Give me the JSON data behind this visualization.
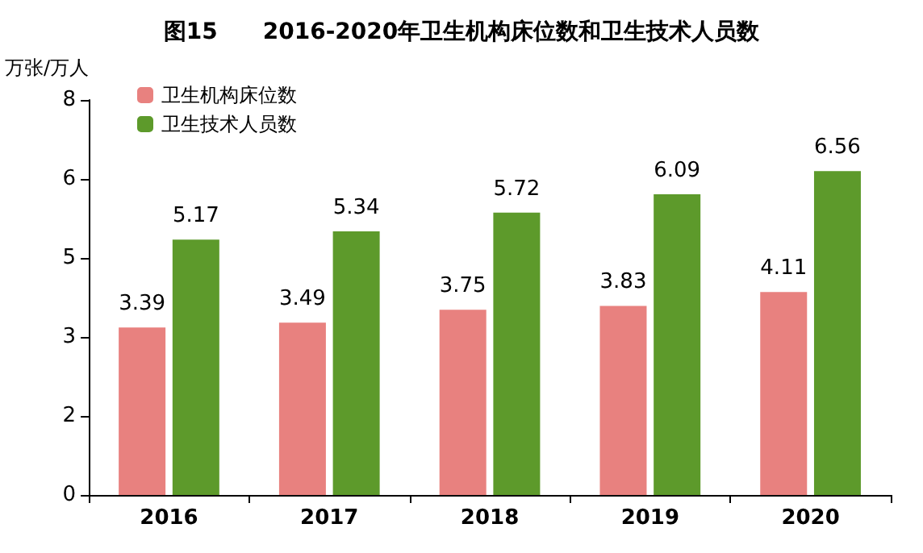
{
  "chart_data": {
    "type": "bar",
    "title": "图15　　2016-2020年卫生机构床位数和卫生技术人员数",
    "ylabel": "万张/万人",
    "categories": [
      "2016",
      "2017",
      "2018",
      "2019",
      "2020"
    ],
    "series": [
      {
        "name": "卫生机构床位数",
        "color": "#e8817f",
        "values": [
          3.39,
          3.49,
          3.75,
          3.83,
          4.11
        ]
      },
      {
        "name": "卫生技术人员数",
        "color": "#5d9a2b",
        "values": [
          5.17,
          5.34,
          5.72,
          6.09,
          6.56
        ]
      }
    ],
    "ylim": [
      0,
      8
    ],
    "yticks": [
      0,
      {
        "value": 1.6,
        "label": "2"
      },
      {
        "value": 3.2,
        "label": "3"
      },
      {
        "value": 4.8,
        "label": "5"
      },
      {
        "value": 6.4,
        "label": "6"
      },
      8
    ],
    "data_labels": true,
    "legend": "top left",
    "grid": false
  }
}
